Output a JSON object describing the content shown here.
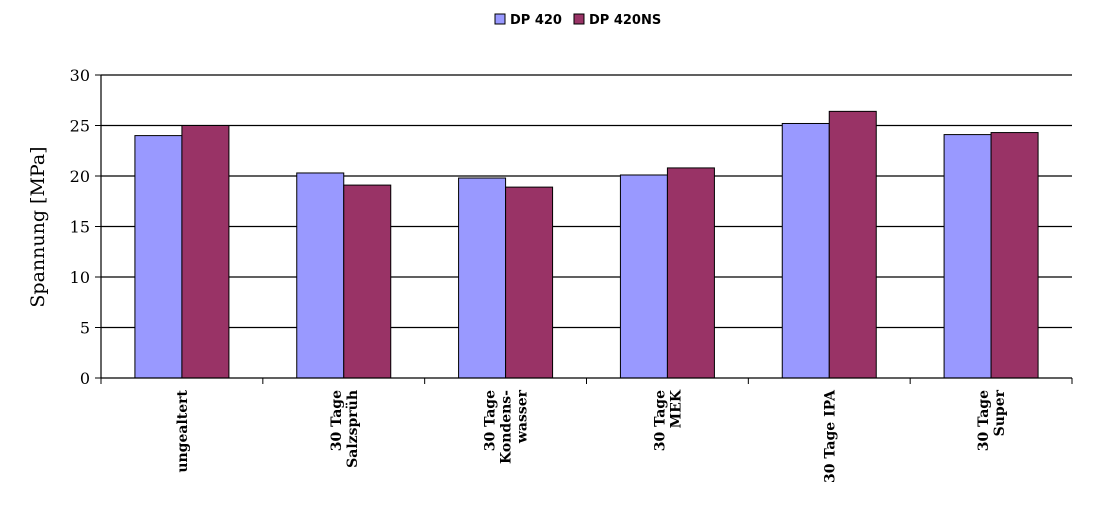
{
  "chart_data": {
    "type": "bar",
    "categories": [
      [
        "ungealtert"
      ],
      [
        "30 Tage",
        "Salzsprüh"
      ],
      [
        "30 Tage",
        "Kondens-",
        "wasser"
      ],
      [
        "30 Tage",
        "MEK"
      ],
      [
        "30 Tage IPA"
      ],
      [
        "30 Tage",
        "Super"
      ]
    ],
    "series": [
      {
        "name": "DP 420",
        "color": "#9999ff",
        "values": [
          24.0,
          20.3,
          19.8,
          20.1,
          25.2,
          24.1
        ]
      },
      {
        "name": "DP 420NS",
        "color": "#993366",
        "values": [
          25.0,
          19.1,
          18.9,
          20.8,
          26.4,
          24.3
        ]
      }
    ],
    "title": "",
    "xlabel": "",
    "ylabel": "Spannung [MPa]",
    "ylim": [
      0,
      30
    ],
    "yticks": [
      0,
      5,
      10,
      15,
      20,
      25,
      30
    ],
    "grid": true,
    "legend": "top-center"
  }
}
